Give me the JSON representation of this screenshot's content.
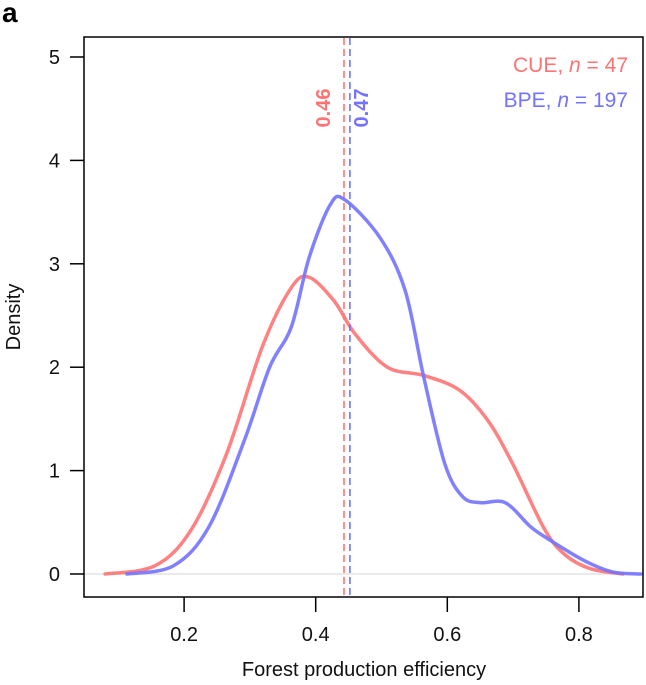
{
  "panel_label": "a",
  "chart_data": {
    "type": "line",
    "title": "",
    "xlabel": "Forest production efficiency",
    "ylabel": "Density",
    "xlim": [
      0.08,
      0.9
    ],
    "ylim": [
      0,
      5
    ],
    "xticks": [
      0.2,
      0.4,
      0.6,
      0.8
    ],
    "xtick_labels": [
      "0.2",
      "0.4",
      "0.6",
      "0.8"
    ],
    "yticks": [
      0,
      1,
      2,
      3,
      4,
      5
    ],
    "ytick_labels": [
      "0",
      "1",
      "2",
      "3",
      "4",
      "5"
    ],
    "grid": false,
    "zero_line": true,
    "legend_position": "top-right",
    "series": [
      {
        "name": "CUE",
        "legend_prefix": "CUE, ",
        "legend_n_symbol": "n",
        "legend_suffix": " = 47",
        "color": "#ff7373",
        "x": [
          0.08,
          0.156,
          0.211,
          0.265,
          0.319,
          0.363,
          0.39,
          0.428,
          0.46,
          0.509,
          0.564,
          0.618,
          0.661,
          0.699,
          0.748,
          0.78,
          0.818,
          0.867
        ],
        "y": [
          0,
          0.08,
          0.43,
          1.17,
          2.2,
          2.77,
          2.87,
          2.64,
          2.32,
          2.0,
          1.92,
          1.78,
          1.49,
          1.07,
          0.43,
          0.18,
          0.05,
          0
        ],
        "mean_position": 0.443,
        "mean_label": "0.46"
      },
      {
        "name": "BPE",
        "legend_prefix": "BPE, ",
        "legend_n_symbol": "n",
        "legend_suffix": " = 197",
        "color": "#7373ff",
        "x": [
          0.113,
          0.184,
          0.238,
          0.292,
          0.33,
          0.363,
          0.39,
          0.422,
          0.444,
          0.498,
          0.536,
          0.564,
          0.596,
          0.623,
          0.65,
          0.688,
          0.726,
          0.753,
          0.808,
          0.851,
          0.894
        ],
        "y": [
          0,
          0.08,
          0.46,
          1.3,
          2.0,
          2.39,
          3.06,
          3.57,
          3.62,
          3.25,
          2.74,
          1.91,
          1.07,
          0.75,
          0.69,
          0.69,
          0.46,
          0.34,
          0.13,
          0.02,
          0
        ],
        "mean_position": 0.452,
        "mean_label": "0.47"
      }
    ]
  }
}
